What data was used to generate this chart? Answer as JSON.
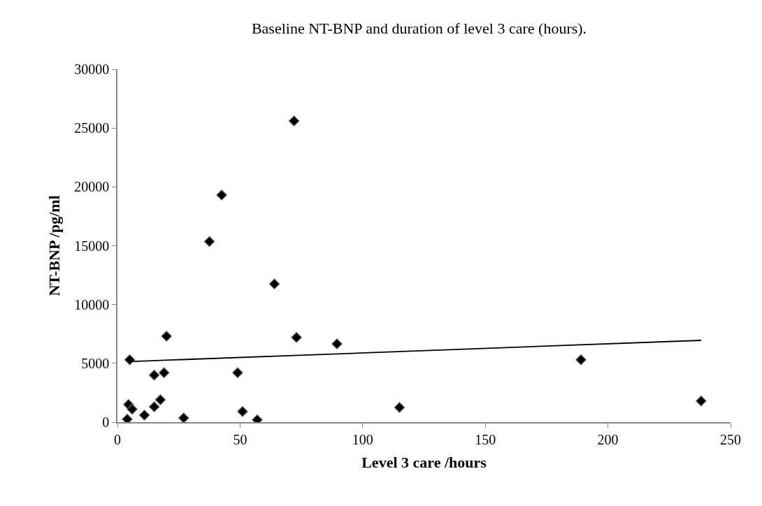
{
  "chart_data": {
    "type": "scatter",
    "title": "Baseline NT-BNP and duration of level 3 care (hours).",
    "xlabel": "Level 3 care /hours",
    "ylabel": "NT-BNP /pg/ml",
    "xlim": [
      0,
      250
    ],
    "xticks": [
      0,
      50,
      100,
      150,
      200,
      250
    ],
    "ylim": [
      0,
      30000
    ],
    "yticks": [
      0,
      5000,
      10000,
      15000,
      20000,
      25000,
      30000
    ],
    "legend": false,
    "series": [
      {
        "marker": "diamond",
        "color": "#000000",
        "x": [
          4,
          4.5,
          5,
          6,
          11,
          15,
          15,
          17.5,
          19,
          20,
          27,
          37.5,
          42.5,
          49,
          51,
          57,
          64,
          72,
          73,
          89.5,
          115,
          189,
          238
        ],
        "values": [
          250,
          1500,
          5300,
          1100,
          600,
          1300,
          4000,
          1900,
          4200,
          7300,
          350,
          15350,
          19300,
          4200,
          900,
          200,
          11750,
          25600,
          7200,
          6650,
          1250,
          5300,
          1800
        ]
      },
      {
        "type": "line",
        "marker": "none",
        "color": "#000000",
        "line_style": "solid",
        "x": [
          5,
          238
        ],
        "values": [
          5150,
          6950
        ]
      }
    ]
  }
}
